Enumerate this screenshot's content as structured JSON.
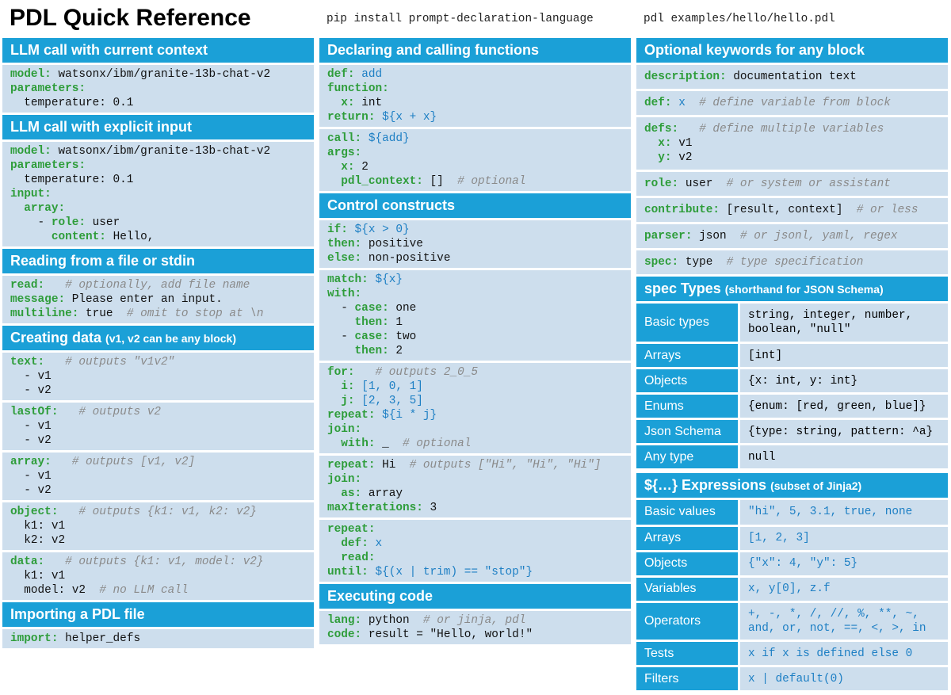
{
  "header": {
    "title": "PDL Quick Reference",
    "install_cmd": "pip install prompt-declaration-language",
    "run_cmd": "pdl examples/hello/hello.pdl"
  },
  "col1": [
    {
      "title": "LLM call with current context",
      "sub": "",
      "blocks": [
        [
          [
            [
              "k",
              "model: "
            ],
            [
              "t",
              "watsonx/ibm/granite-13b-chat-v2"
            ]
          ],
          [
            [
              "k",
              "parameters:"
            ]
          ],
          [
            [
              "t",
              "  temperature: 0.1"
            ]
          ]
        ]
      ]
    },
    {
      "title": "LLM call with explicit input",
      "sub": "",
      "blocks": [
        [
          [
            [
              "k",
              "model: "
            ],
            [
              "t",
              "watsonx/ibm/granite-13b-chat-v2"
            ]
          ],
          [
            [
              "k",
              "parameters:"
            ]
          ],
          [
            [
              "t",
              "  temperature: 0.1"
            ]
          ],
          [
            [
              "k",
              "input:"
            ]
          ],
          [
            [
              "t",
              "  "
            ],
            [
              "k",
              "array:"
            ]
          ],
          [
            [
              "t",
              "    - "
            ],
            [
              "k",
              "role: "
            ],
            [
              "t",
              "user"
            ]
          ],
          [
            [
              "t",
              "      "
            ],
            [
              "k",
              "content: "
            ],
            [
              "t",
              "Hello,"
            ]
          ]
        ]
      ]
    },
    {
      "title": "Reading from a file or stdin",
      "sub": "",
      "blocks": [
        [
          [
            [
              "k",
              "read: "
            ],
            [
              "t",
              "  "
            ],
            [
              "c",
              "# optionally, add file name"
            ]
          ],
          [
            [
              "k",
              "message: "
            ],
            [
              "t",
              "Please enter an input."
            ]
          ],
          [
            [
              "k",
              "multiline: "
            ],
            [
              "t",
              "true  "
            ],
            [
              "c",
              "# omit to stop at \\n"
            ]
          ]
        ]
      ]
    },
    {
      "title": "Creating data ",
      "sub": "(v1, v2 can be any block)",
      "blocks": [
        [
          [
            [
              "k",
              "text: "
            ],
            [
              "t",
              "  "
            ],
            [
              "c",
              "# outputs \"v1v2\""
            ]
          ],
          [
            [
              "t",
              "  - v1"
            ]
          ],
          [
            [
              "t",
              "  - v2"
            ]
          ]
        ],
        [
          [
            [
              "k",
              "lastOf: "
            ],
            [
              "t",
              "  "
            ],
            [
              "c",
              "# outputs v2"
            ]
          ],
          [
            [
              "t",
              "  - v1"
            ]
          ],
          [
            [
              "t",
              "  - v2"
            ]
          ]
        ],
        [
          [
            [
              "k",
              "array: "
            ],
            [
              "t",
              "  "
            ],
            [
              "c",
              "# outputs [v1, v2]"
            ]
          ],
          [
            [
              "t",
              "  - v1"
            ]
          ],
          [
            [
              "t",
              "  - v2"
            ]
          ]
        ],
        [
          [
            [
              "k",
              "object: "
            ],
            [
              "t",
              "  "
            ],
            [
              "c",
              "# outputs {k1: v1, k2: v2}"
            ]
          ],
          [
            [
              "t",
              "  k1: v1"
            ]
          ],
          [
            [
              "t",
              "  k2: v2"
            ]
          ]
        ],
        [
          [
            [
              "k",
              "data: "
            ],
            [
              "t",
              "  "
            ],
            [
              "c",
              "# outputs {k1: v1, model: v2}"
            ]
          ],
          [
            [
              "t",
              "  k1: v1"
            ]
          ],
          [
            [
              "t",
              "  model: v2  "
            ],
            [
              "c",
              "# no LLM call"
            ]
          ]
        ]
      ]
    },
    {
      "title": "Importing a PDL file",
      "sub": "",
      "blocks": [
        [
          [
            [
              "k",
              "import: "
            ],
            [
              "t",
              "helper_defs"
            ]
          ]
        ]
      ]
    }
  ],
  "col2": [
    {
      "title": "Declaring and calling functions",
      "sub": "",
      "blocks": [
        [
          [
            [
              "k",
              "def: "
            ],
            [
              "e",
              "add"
            ]
          ],
          [
            [
              "k",
              "function:"
            ]
          ],
          [
            [
              "t",
              "  "
            ],
            [
              "k",
              "x: "
            ],
            [
              "t",
              "int"
            ]
          ],
          [
            [
              "k",
              "return: "
            ],
            [
              "e",
              "${x + x}"
            ]
          ]
        ],
        [
          [
            [
              "k",
              "call: "
            ],
            [
              "e",
              "${add}"
            ]
          ],
          [
            [
              "k",
              "args:"
            ]
          ],
          [
            [
              "t",
              "  "
            ],
            [
              "k",
              "x: "
            ],
            [
              "t",
              "2"
            ]
          ],
          [
            [
              "t",
              "  "
            ],
            [
              "k",
              "pdl_context: "
            ],
            [
              "t",
              "[]  "
            ],
            [
              "c",
              "# optional"
            ]
          ]
        ]
      ]
    },
    {
      "title": "Control constructs",
      "sub": "",
      "blocks": [
        [
          [
            [
              "k",
              "if: "
            ],
            [
              "e",
              "${x > 0}"
            ]
          ],
          [
            [
              "k",
              "then: "
            ],
            [
              "t",
              "positive"
            ]
          ],
          [
            [
              "k",
              "else: "
            ],
            [
              "t",
              "non-positive"
            ]
          ]
        ],
        [
          [
            [
              "k",
              "match: "
            ],
            [
              "e",
              "${x}"
            ]
          ],
          [
            [
              "k",
              "with:"
            ]
          ],
          [
            [
              "t",
              "  - "
            ],
            [
              "k",
              "case: "
            ],
            [
              "t",
              "one"
            ]
          ],
          [
            [
              "t",
              "    "
            ],
            [
              "k",
              "then: "
            ],
            [
              "t",
              "1"
            ]
          ],
          [
            [
              "t",
              "  - "
            ],
            [
              "k",
              "case: "
            ],
            [
              "t",
              "two"
            ]
          ],
          [
            [
              "t",
              "    "
            ],
            [
              "k",
              "then: "
            ],
            [
              "t",
              "2"
            ]
          ]
        ],
        [
          [
            [
              "k",
              "for: "
            ],
            [
              "t",
              "  "
            ],
            [
              "c",
              "# outputs 2_0_5"
            ]
          ],
          [
            [
              "t",
              "  "
            ],
            [
              "k",
              "i: "
            ],
            [
              "e",
              "[1, 0, 1]"
            ]
          ],
          [
            [
              "t",
              "  "
            ],
            [
              "k",
              "j: "
            ],
            [
              "e",
              "[2, 3, 5]"
            ]
          ],
          [
            [
              "k",
              "repeat: "
            ],
            [
              "e",
              "${i * j}"
            ]
          ],
          [
            [
              "k",
              "join:"
            ]
          ],
          [
            [
              "t",
              "  "
            ],
            [
              "k",
              "with: "
            ],
            [
              "t",
              "_  "
            ],
            [
              "c",
              "# optional"
            ]
          ]
        ],
        [
          [
            [
              "k",
              "repeat: "
            ],
            [
              "t",
              "Hi  "
            ],
            [
              "c",
              "# outputs [\"Hi\", \"Hi\", \"Hi\"]"
            ]
          ],
          [
            [
              "k",
              "join:"
            ]
          ],
          [
            [
              "t",
              "  "
            ],
            [
              "k",
              "as: "
            ],
            [
              "t",
              "array"
            ]
          ],
          [
            [
              "k",
              "maxIterations: "
            ],
            [
              "t",
              "3"
            ]
          ]
        ],
        [
          [
            [
              "k",
              "repeat:"
            ]
          ],
          [
            [
              "t",
              "  "
            ],
            [
              "k",
              "def: "
            ],
            [
              "e",
              "x"
            ]
          ],
          [
            [
              "t",
              "  "
            ],
            [
              "k",
              "read:"
            ]
          ],
          [
            [
              "k",
              "until: "
            ],
            [
              "e",
              "${(x | trim) == \"stop\"}"
            ]
          ]
        ]
      ]
    },
    {
      "title": "Executing code",
      "sub": "",
      "blocks": [
        [
          [
            [
              "k",
              "lang: "
            ],
            [
              "t",
              "python  "
            ],
            [
              "c",
              "# or jinja, pdl"
            ]
          ],
          [
            [
              "k",
              "code: "
            ],
            [
              "t",
              "result = \"Hello, world!\""
            ]
          ]
        ]
      ]
    }
  ],
  "col3": {
    "keywords_title": "Optional keywords for any block",
    "keywords": [
      [
        [
          [
            "k",
            "description: "
          ],
          [
            "t",
            "documentation text"
          ]
        ]
      ],
      [
        [
          [
            "k",
            "def: "
          ],
          [
            "e",
            "x  "
          ],
          [
            "c",
            "# define variable from block"
          ]
        ]
      ],
      [
        [
          [
            "k",
            "defs: "
          ],
          [
            "t",
            "  "
          ],
          [
            "c",
            "# define multiple variables"
          ]
        ],
        [
          [
            "t",
            "  "
          ],
          [
            "k",
            "x: "
          ],
          [
            "t",
            "v1"
          ]
        ],
        [
          [
            "t",
            "  "
          ],
          [
            "k",
            "y: "
          ],
          [
            "t",
            "v2"
          ]
        ]
      ],
      [
        [
          [
            "k",
            "role: "
          ],
          [
            "t",
            "user  "
          ],
          [
            "c",
            "# or system or assistant"
          ]
        ]
      ],
      [
        [
          [
            "k",
            "contribute: "
          ],
          [
            "t",
            "[result, context]  "
          ],
          [
            "c",
            "# or less"
          ]
        ]
      ],
      [
        [
          [
            "k",
            "parser: "
          ],
          [
            "t",
            "json  "
          ],
          [
            "c",
            "# or jsonl, yaml, regex"
          ]
        ]
      ],
      [
        [
          [
            "k",
            "spec: "
          ],
          [
            "t",
            "type  "
          ],
          [
            "c",
            "# type specification"
          ]
        ]
      ]
    ],
    "spec_title": "spec Types ",
    "spec_sub": "(shorthand for JSON Schema)",
    "spec_rows": [
      {
        "label": "Basic types",
        "value": "string, integer, number,\nboolean, \"null\""
      },
      {
        "label": "Arrays",
        "value": "[int]"
      },
      {
        "label": "Objects",
        "value": "{x: int, y: int}"
      },
      {
        "label": "Enums",
        "value": "{enum: [red, green, blue]}"
      },
      {
        "label": "Json Schema",
        "value": "{type: string, pattern: ^a}"
      },
      {
        "label": "Any type",
        "value": "null"
      }
    ],
    "expr_title": "${…} Expressions ",
    "expr_sub": "(subset of Jinja2)",
    "expr_rows": [
      {
        "label": "Basic values",
        "value": "\"hi\", 5, 3.1, true, none"
      },
      {
        "label": "Arrays",
        "value": "[1, 2, 3]"
      },
      {
        "label": "Objects",
        "value": "{\"x\": 4, \"y\": 5}"
      },
      {
        "label": "Variables",
        "value": "x, y[0], z.f"
      },
      {
        "label": "Operators",
        "value": "+, -, *, /, //, %, **, ~,\nand, or, not, ==, <, >, in"
      },
      {
        "label": "Tests",
        "value": "x if x is defined else 0"
      },
      {
        "label": "Filters",
        "value": "x | default(0)"
      }
    ]
  }
}
